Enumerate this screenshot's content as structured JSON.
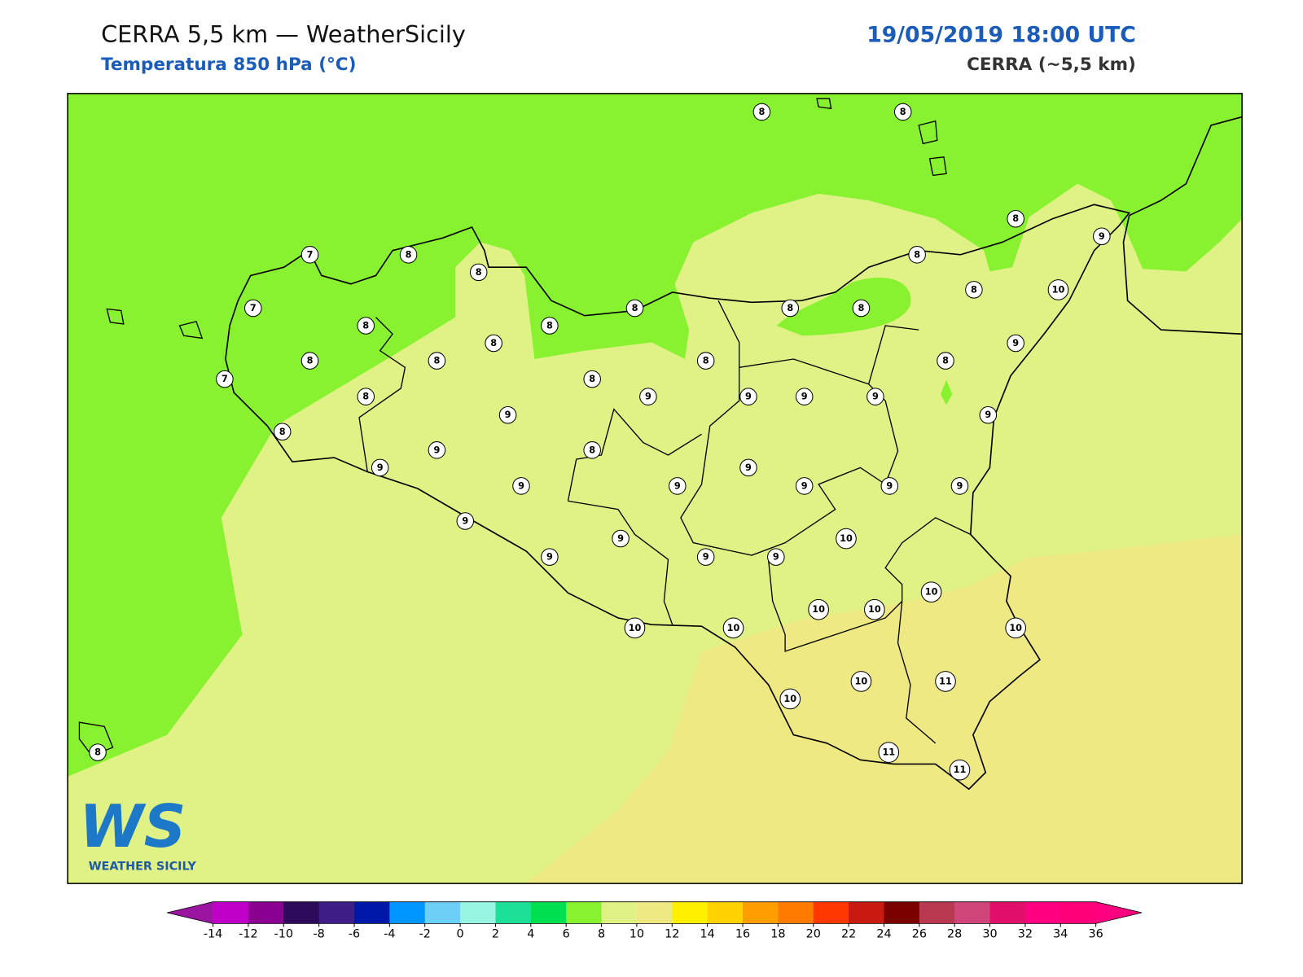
{
  "header": {
    "title": "CERRA 5,5 km — WeatherSicily",
    "subtitle": "Temperatura 850 hPa (°C)",
    "datetime": "19/05/2019 18:00 UTC",
    "model": "CERRA (~5,5 km)"
  },
  "stations": [
    8,
    8,
    8,
    9,
    7,
    8,
    8,
    8,
    7,
    8,
    8,
    8,
    8,
    8,
    8,
    10,
    8,
    8,
    8,
    8,
    8,
    9,
    7,
    8,
    8,
    9,
    9,
    9,
    9,
    9,
    9,
    8,
    9,
    8,
    9,
    9,
    9,
    9,
    9,
    9,
    9,
    9,
    10,
    9,
    9,
    9,
    9,
    10,
    10,
    10,
    10,
    10,
    10,
    10,
    11,
    10,
    11,
    11,
    8
  ],
  "colorbar": {
    "ticks": [
      -14,
      -12,
      -10,
      -8,
      -6,
      -4,
      -2,
      0,
      2,
      4,
      6,
      8,
      10,
      12,
      14,
      16,
      18,
      20,
      22,
      24,
      26,
      28,
      30,
      32,
      34,
      36
    ],
    "under_color": "#9a16a0",
    "over_color": "#ff0080",
    "colors": [
      "#c000c8",
      "#8a0090",
      "#2e0a5a",
      "#3c1e86",
      "#0018a8",
      "#0096ff",
      "#6ccff6",
      "#98f5e1",
      "#1de098",
      "#00e050",
      "#88f231",
      "#e0f285",
      "#efe984",
      "#fff000",
      "#ffd200",
      "#ff9e00",
      "#ff7c00",
      "#ff3800",
      "#c81a10",
      "#7a0000",
      "#b83a50",
      "#d0467a",
      "#e0106a",
      "#ff0080",
      "#ff0078"
    ]
  },
  "logo": {
    "mark": "WS",
    "text": "WEATHER SICILY"
  }
}
